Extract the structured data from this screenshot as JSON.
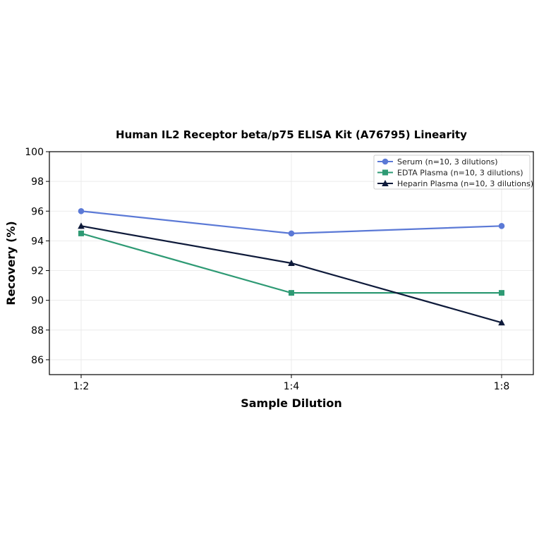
{
  "chart_data": {
    "type": "line",
    "title": "Human IL2 Receptor beta/p75 ELISA Kit (A76795) Linearity",
    "xlabel": "Sample Dilution",
    "ylabel": "Recovery (%)",
    "categories": [
      "1:2",
      "1:4",
      "1:8"
    ],
    "ylim": [
      85,
      100
    ],
    "yticks": [
      86,
      88,
      90,
      92,
      94,
      96,
      98,
      100
    ],
    "grid": true,
    "legend_position": "top-right",
    "series": [
      {
        "name": "Serum (n=10, 3 dilutions)",
        "values": [
          96.0,
          94.5,
          95.0
        ],
        "color": "#5b79d6",
        "marker": "circle"
      },
      {
        "name": "EDTA Plasma (n=10, 3 dilutions)",
        "values": [
          94.5,
          90.5,
          90.5
        ],
        "color": "#2e9a74",
        "marker": "square"
      },
      {
        "name": "Heparin Plasma (n=10, 3 dilutions)",
        "values": [
          95.0,
          92.5,
          88.5
        ],
        "color": "#0e1a3a",
        "marker": "triangle"
      }
    ]
  }
}
